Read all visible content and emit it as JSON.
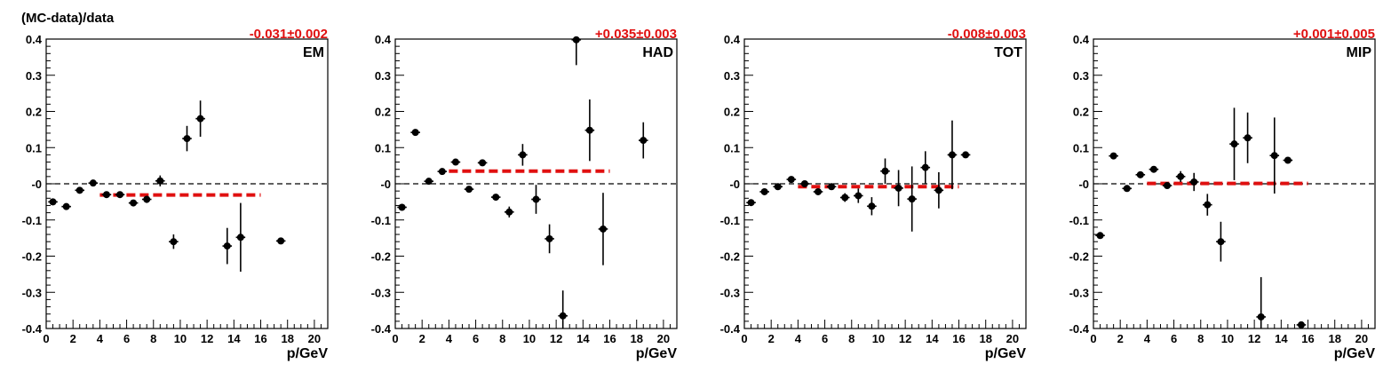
{
  "figure": {
    "ylabel": "(MC-data)/data",
    "colors": {
      "points": "#000000",
      "fit_line": "#e01010",
      "fit_label": "#e01010",
      "zero_line": "#000000"
    }
  },
  "chart_data": [
    {
      "type": "scatter",
      "panel_label": "EM",
      "fit_label": "-0.031±0.002",
      "xlabel": "p/GeV",
      "ylabel": "(MC-data)/data",
      "xlim": [
        0,
        21
      ],
      "ylim": [
        -0.4,
        0.4
      ],
      "x_ticks": [
        "0",
        "2",
        "4",
        "6",
        "8",
        "10",
        "12",
        "14",
        "16",
        "18",
        "20"
      ],
      "y_ticks": [
        "-0.4",
        "-0.3",
        "-0.2",
        "-0.1",
        "-0",
        "0.1",
        "0.2",
        "0.3",
        "0.4"
      ],
      "grid": false,
      "series": [
        {
          "x": [
            0.5,
            1.5,
            2.5,
            3.5,
            4.5,
            5.5,
            6.5,
            7.5,
            8.5,
            9.5,
            10.5,
            11.5,
            13.5,
            14.5,
            17.5
          ],
          "y": [
            -0.05,
            -0.063,
            -0.018,
            0.002,
            -0.03,
            -0.03,
            -0.053,
            -0.043,
            0.008,
            -0.16,
            0.125,
            0.18,
            -0.172,
            -0.148,
            -0.158
          ],
          "yerr": [
            0.006,
            0.006,
            0.006,
            0.005,
            0.006,
            0.006,
            0.008,
            0.01,
            0.015,
            0.02,
            0.035,
            0.05,
            0.05,
            0.095,
            0.005
          ]
        }
      ],
      "fit": {
        "value": -0.031,
        "x_range": [
          4,
          16
        ]
      }
    },
    {
      "type": "scatter",
      "panel_label": "HAD",
      "fit_label": "+0.035±0.003",
      "xlabel": "p/GeV",
      "ylabel": "",
      "xlim": [
        0,
        21
      ],
      "ylim": [
        -0.4,
        0.4
      ],
      "x_ticks": [
        "0",
        "2",
        "4",
        "6",
        "8",
        "10",
        "12",
        "14",
        "16",
        "18",
        "20"
      ],
      "y_ticks": [
        "-0.4",
        "-0.3",
        "-0.2",
        "-0.1",
        "-0",
        "0.1",
        "0.2",
        "0.3",
        "0.4"
      ],
      "grid": false,
      "series": [
        {
          "x": [
            0.5,
            1.5,
            2.5,
            3.5,
            4.5,
            5.5,
            6.5,
            7.5,
            8.5,
            9.5,
            10.5,
            11.5,
            12.5,
            13.5,
            14.5,
            15.5,
            18.5
          ],
          "y": [
            -0.065,
            0.142,
            0.007,
            0.034,
            0.06,
            -0.015,
            0.058,
            -0.037,
            -0.078,
            0.08,
            -0.043,
            -0.152,
            -0.365,
            0.398,
            0.148,
            -0.125,
            0.12
          ],
          "yerr": [
            0.006,
            0.006,
            0.006,
            0.006,
            0.006,
            0.006,
            0.006,
            0.008,
            0.015,
            0.03,
            0.04,
            0.04,
            0.07,
            0.07,
            0.085,
            0.1,
            0.05
          ]
        }
      ],
      "fit": {
        "value": 0.035,
        "x_range": [
          4,
          16
        ]
      }
    },
    {
      "type": "scatter",
      "panel_label": "TOT",
      "fit_label": "-0.008±0.003",
      "xlabel": "p/GeV",
      "ylabel": "",
      "xlim": [
        0,
        21
      ],
      "ylim": [
        -0.4,
        0.4
      ],
      "x_ticks": [
        "0",
        "2",
        "4",
        "6",
        "8",
        "10",
        "12",
        "14",
        "16",
        "18",
        "20"
      ],
      "y_ticks": [
        "-0.4",
        "-0.3",
        "-0.2",
        "-0.1",
        "-0",
        "0.1",
        "0.2",
        "0.3",
        "0.4"
      ],
      "grid": false,
      "series": [
        {
          "x": [
            0.5,
            1.5,
            2.5,
            3.5,
            4.5,
            5.5,
            6.5,
            7.5,
            8.5,
            9.5,
            10.5,
            11.5,
            12.5,
            13.5,
            14.5,
            15.5,
            16.5
          ],
          "y": [
            -0.052,
            -0.022,
            -0.008,
            0.012,
            0.0,
            -0.022,
            -0.008,
            -0.038,
            -0.033,
            -0.062,
            0.035,
            -0.012,
            -0.042,
            0.045,
            -0.018,
            0.08,
            0.08
          ],
          "yerr": [
            0.006,
            0.006,
            0.006,
            0.006,
            0.006,
            0.008,
            0.006,
            0.012,
            0.02,
            0.025,
            0.035,
            0.05,
            0.09,
            0.045,
            0.05,
            0.095,
            0.005
          ]
        }
      ],
      "fit": {
        "value": -0.008,
        "x_range": [
          4,
          16
        ]
      }
    },
    {
      "type": "scatter",
      "panel_label": "MIP",
      "fit_label": "+0.001±0.005",
      "xlabel": "p/GeV",
      "ylabel": "",
      "xlim": [
        0,
        21
      ],
      "ylim": [
        -0.4,
        0.4
      ],
      "x_ticks": [
        "0",
        "2",
        "4",
        "6",
        "8",
        "10",
        "12",
        "14",
        "16",
        "18",
        "20"
      ],
      "y_ticks": [
        "-0.4",
        "-0.3",
        "-0.2",
        "-0.1",
        "-0",
        "0.1",
        "0.2",
        "0.3",
        "0.4"
      ],
      "grid": false,
      "series": [
        {
          "x": [
            0.5,
            1.5,
            2.5,
            3.5,
            4.5,
            5.5,
            6.5,
            7.5,
            8.5,
            9.5,
            10.5,
            11.5,
            12.5,
            13.5,
            14.5,
            15.5
          ],
          "y": [
            -0.143,
            0.077,
            -0.013,
            0.025,
            0.04,
            -0.005,
            0.02,
            0.005,
            -0.058,
            -0.16,
            0.11,
            0.127,
            -0.368,
            0.078,
            0.065,
            -0.39
          ],
          "yerr": [
            0.005,
            0.006,
            0.006,
            0.006,
            0.006,
            0.006,
            0.015,
            0.025,
            0.03,
            0.055,
            0.1,
            0.07,
            0.11,
            0.105,
            0.006,
            0.005
          ]
        }
      ],
      "fit": {
        "value": 0.001,
        "x_range": [
          4,
          16
        ]
      }
    }
  ]
}
